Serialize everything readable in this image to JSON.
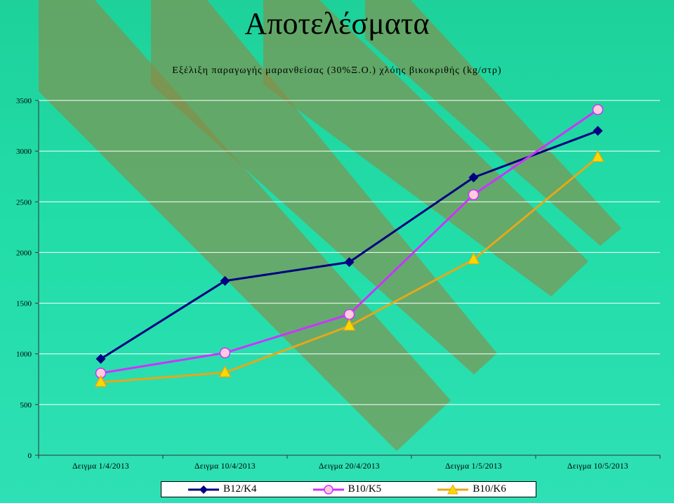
{
  "page": {
    "title": "Αποτελέσματα",
    "subtitle": "Εξέλιξη παραγωγής μαρανθείσας (30%Ξ.Ο.) χλόης βικοκριθής (kg/στρ)"
  },
  "chart_data": {
    "type": "line",
    "title": "Εξέλιξη παραγωγής μαρανθείσας (30%Ξ.Ο.) χλόης βικοκριθής (kg/στρ)",
    "categories": [
      "Δειγμα 1/4/2013",
      "Δειγμα 10/4/2013",
      "Δειγμα 20/4/2013",
      "Δειγμα 1/5/2013",
      "Δειγμα 10/5/2013"
    ],
    "series": [
      {
        "name": "B12/K4",
        "values": [
          950,
          1720,
          1905,
          2740,
          3200
        ],
        "color": "#000080",
        "marker": "diamond"
      },
      {
        "name": "B10/K5",
        "values": [
          810,
          1010,
          1390,
          2570,
          3410
        ],
        "color": "#cc33ff",
        "marker": "circle",
        "marker_fill": "#ffccdd"
      },
      {
        "name": "B10/K6",
        "values": [
          720,
          815,
          1275,
          1930,
          2940
        ],
        "color": "#e6a817",
        "marker": "triangle",
        "marker_fill": "#ffd700"
      }
    ],
    "yticks": [
      0,
      500,
      1000,
      1500,
      2000,
      2500,
      3000,
      3500
    ],
    "ylim": [
      0,
      3500
    ],
    "grid": true,
    "legend": "bottom"
  }
}
